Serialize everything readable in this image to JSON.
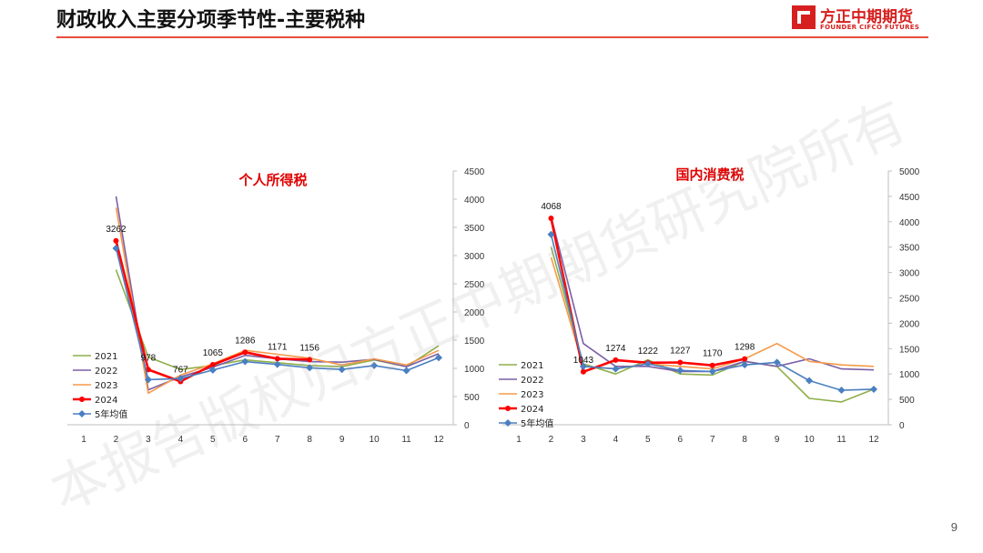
{
  "header": {
    "title": "财政收入主要分项季节性-主要税种",
    "logo_cn": "方正中期期货",
    "logo_en": "FOUNDER CIFCO FUTURES"
  },
  "page_number": "9",
  "watermark": "本报告版权归方正中期期货研究院所有",
  "colors": {
    "accent": "#e84c3d",
    "series_2021": "#8faf4b",
    "series_2022": "#7b5fa6",
    "series_2023": "#f59a4a",
    "series_2024": "#ff0000",
    "series_avg": "#4a7fc1"
  },
  "chart_data": [
    {
      "type": "line",
      "title": "个人所得税",
      "categories": [
        "1",
        "2",
        "3",
        "4",
        "5",
        "6",
        "7",
        "8",
        "9",
        "10",
        "11",
        "12"
      ],
      "ylim": [
        0,
        4500
      ],
      "yticks": [
        0,
        500,
        1000,
        1500,
        2000,
        2500,
        3000,
        3500,
        4000,
        4500
      ],
      "y_axis_side": "right",
      "legend_position": "bottom-left",
      "series": [
        {
          "name": "2021",
          "color": "#8faf4b",
          "values": [
            null,
            2750,
            1200,
            980,
            1050,
            1150,
            1100,
            1050,
            1030,
            1150,
            1030,
            1400
          ]
        },
        {
          "name": "2022",
          "color": "#7b5fa6",
          "values": [
            null,
            4050,
            620,
            850,
            1020,
            1230,
            1170,
            1120,
            1110,
            1160,
            1030,
            1260
          ]
        },
        {
          "name": "2023",
          "color": "#f59a4a",
          "values": [
            null,
            3850,
            560,
            880,
            1080,
            1320,
            1250,
            1180,
            1060,
            1170,
            1060,
            1320
          ]
        },
        {
          "name": "2024",
          "color": "#ff0000",
          "marker": "circle",
          "values": [
            null,
            3262,
            978,
            767,
            1065,
            1286,
            1171,
            1156,
            null,
            null,
            null,
            null
          ]
        },
        {
          "name": "5年均值",
          "color": "#4a7fc1",
          "marker": "diamond",
          "values": [
            null,
            3130,
            800,
            820,
            970,
            1120,
            1070,
            1010,
            980,
            1050,
            960,
            1190
          ]
        }
      ],
      "data_labels": [
        {
          "x": "2",
          "text": "3262"
        },
        {
          "x": "3",
          "text": "978"
        },
        {
          "x": "4",
          "text": "767"
        },
        {
          "x": "5",
          "text": "1065"
        },
        {
          "x": "6",
          "text": "1286"
        },
        {
          "x": "7",
          "text": "1171"
        },
        {
          "x": "8",
          "text": "1156"
        }
      ]
    },
    {
      "type": "line",
      "title": "国内消费税",
      "categories": [
        "1",
        "2",
        "3",
        "4",
        "5",
        "6",
        "7",
        "8",
        "9",
        "10",
        "11",
        "12"
      ],
      "ylim": [
        0,
        5000
      ],
      "yticks": [
        0,
        500,
        1000,
        1500,
        2000,
        2500,
        3000,
        3500,
        4000,
        4500,
        5000
      ],
      "y_axis_side": "right",
      "legend_position": "bottom-left",
      "series": [
        {
          "name": "2021",
          "color": "#8faf4b",
          "values": [
            null,
            3500,
            1200,
            1000,
            1280,
            1000,
            980,
            1250,
            1150,
            520,
            450,
            700
          ]
        },
        {
          "name": "2022",
          "color": "#7b5fa6",
          "values": [
            null,
            4100,
            1600,
            1150,
            1150,
            1050,
            1050,
            1250,
            1150,
            1300,
            1100,
            1080
          ]
        },
        {
          "name": "2023",
          "color": "#f59a4a",
          "values": [
            null,
            3300,
            1150,
            1100,
            1200,
            1150,
            1100,
            1300,
            1600,
            1250,
            1180,
            1150
          ]
        },
        {
          "name": "2024",
          "color": "#ff0000",
          "marker": "circle",
          "values": [
            null,
            4068,
            1043,
            1274,
            1222,
            1227,
            1170,
            1298,
            null,
            null,
            null,
            null
          ]
        },
        {
          "name": "5年均值",
          "color": "#4a7fc1",
          "marker": "diamond",
          "values": [
            null,
            3750,
            1150,
            1100,
            1200,
            1070,
            1050,
            1180,
            1230,
            870,
            680,
            700
          ]
        }
      ],
      "data_labels": [
        {
          "x": "2",
          "text": "4068"
        },
        {
          "x": "3",
          "text": "1043"
        },
        {
          "x": "4",
          "text": "1274"
        },
        {
          "x": "5",
          "text": "1222"
        },
        {
          "x": "6",
          "text": "1227"
        },
        {
          "x": "7",
          "text": "1170"
        },
        {
          "x": "8",
          "text": "1298"
        }
      ]
    }
  ]
}
